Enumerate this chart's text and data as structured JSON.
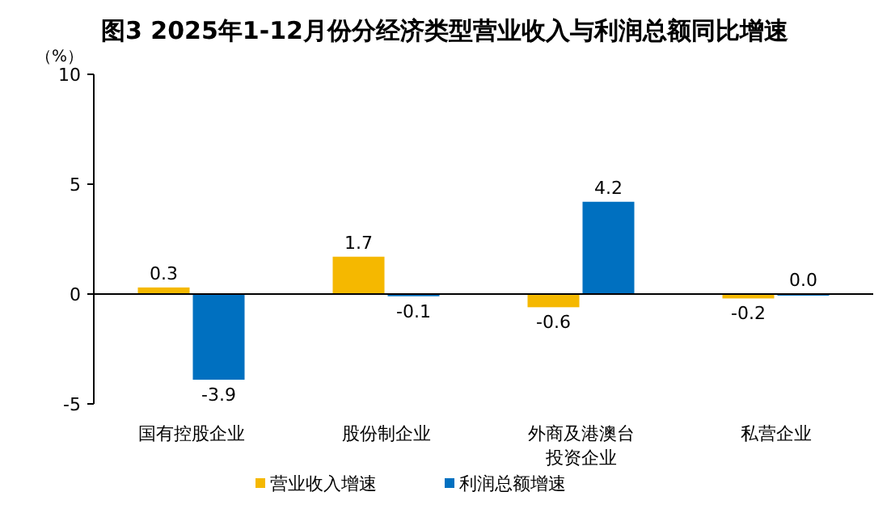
{
  "chart_data": {
    "type": "bar",
    "title": "图3 2025年1-12月份分经济类型营业收入与利润总额同比增速",
    "ylabel": "（%）",
    "categories": [
      "国有控股企业",
      "股份制企业",
      "外商及港澳台投资企业",
      "私营企业"
    ],
    "series": [
      {
        "name": "营业收入增速",
        "color": "#f5b800",
        "values": [
          0.3,
          1.7,
          -0.6,
          -0.2
        ],
        "value_labels": [
          "0.3",
          "1.7",
          "-0.6",
          "-0.2"
        ]
      },
      {
        "name": "利润总额增速",
        "color": "#0070c0",
        "values": [
          -3.9,
          -0.1,
          4.2,
          0.0
        ],
        "value_labels": [
          "-3.9",
          "-0.1",
          "4.2",
          "0.0"
        ]
      }
    ],
    "ylim": [
      -5,
      10
    ],
    "yticks": [
      -5,
      0,
      5,
      10
    ],
    "legend": "bottom"
  }
}
